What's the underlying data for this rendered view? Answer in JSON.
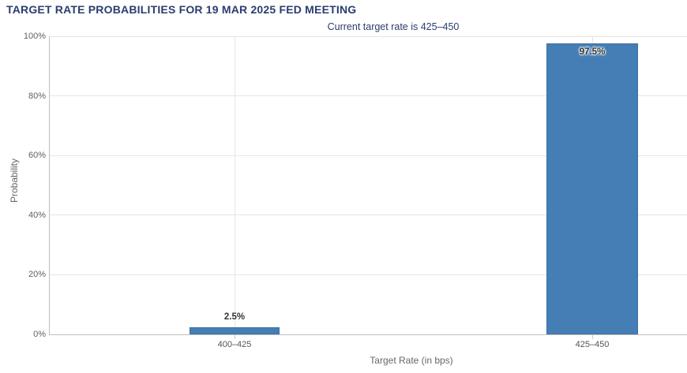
{
  "chart_data": {
    "type": "bar",
    "title": "TARGET RATE PROBABILITIES FOR 19 MAR 2025 FED MEETING",
    "subtitle": "Current target rate is 425–450",
    "categories": [
      "400–425",
      "425–450"
    ],
    "values": [
      2.5,
      97.5
    ],
    "data_labels": [
      "2.5%",
      "97.5%"
    ],
    "xlabel": "Target Rate (in bps)",
    "ylabel": "Probability",
    "ylim": [
      0,
      100
    ],
    "yticks": [
      0,
      20,
      40,
      60,
      80,
      100
    ],
    "ytick_labels": [
      "0%",
      "20%",
      "40%",
      "60%",
      "80%",
      "100%"
    ],
    "grid": true,
    "legend": "none",
    "colors": {
      "bar": "#447eb4",
      "title": "#2b3d6f",
      "gridline": "#e6e6e6",
      "axis_line": "#c0c0c0",
      "tick_label": "#606060",
      "category_label": "#555555",
      "data_label": "#333333",
      "axis_title": "#666666"
    }
  }
}
